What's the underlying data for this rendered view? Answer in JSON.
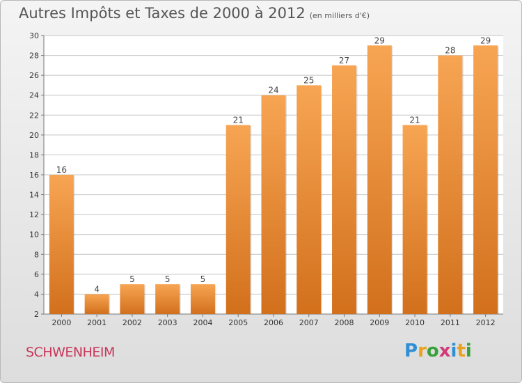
{
  "title": "Autres Impôts et Taxes de 2000 à 2012",
  "subtitle": "(en milliers d'€)",
  "commune": "SCHWENHEIM",
  "logo": {
    "letters": [
      "P",
      "r",
      "o",
      "x",
      "i",
      "t",
      "i"
    ],
    "colors": [
      "#2e8fd6",
      "#e9a21e",
      "#3aa03c",
      "#d23a7a",
      "#2e8fd6",
      "#e9a21e",
      "#3aa03c"
    ]
  },
  "colors": {
    "bar_top": "#f7a553",
    "bar_bottom": "#d2701c",
    "grid": "#c4c4c4"
  },
  "chart_data": {
    "type": "bar",
    "title": "Autres Impôts et Taxes de 2000 à 2012",
    "subtitle": "(en milliers d'€)",
    "categories": [
      "2000",
      "2001",
      "2002",
      "2003",
      "2004",
      "2005",
      "2006",
      "2007",
      "2008",
      "2009",
      "2010",
      "2011",
      "2012"
    ],
    "values": [
      16,
      4,
      5,
      5,
      5,
      21,
      24,
      25,
      27,
      29,
      21,
      28,
      29
    ],
    "ylim": [
      2,
      30
    ],
    "yticks": [
      2,
      4,
      6,
      8,
      10,
      12,
      14,
      16,
      18,
      20,
      22,
      24,
      26,
      28,
      30
    ],
    "grid": true,
    "xlabel": "",
    "ylabel": ""
  }
}
